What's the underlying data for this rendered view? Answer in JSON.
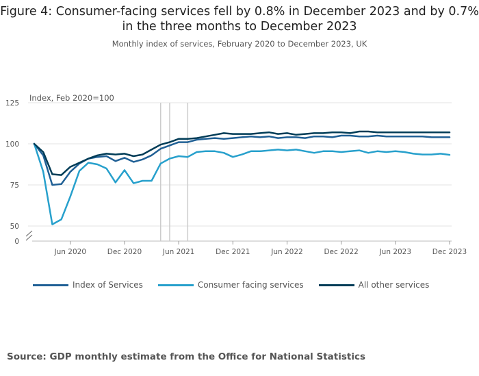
{
  "title": "Figure 4: Consumer-facing services fell by 0.8% in December 2023 and by 0.7% in the three months to December 2023",
  "subtitle": "Monthly index of services, February 2020 to December 2023, UK",
  "source": "Source: GDP monthly estimate from the Office for National Statistics",
  "colors": {
    "index_of_services": "#206095",
    "consumer_facing": "#27a0cc",
    "all_other": "#003c57",
    "grid": "#e3e3e3",
    "ref_line": "#cccccc"
  },
  "chart_data": {
    "type": "line",
    "ylabel": "Index, Feb 2020=100",
    "y_ticks": [
      0,
      50,
      75,
      100,
      125
    ],
    "y_axis_break": true,
    "ylim": [
      45,
      125
    ],
    "x_tick_labels": [
      "Jun 2020",
      "Dec 2020",
      "Jun 2021",
      "Dec 2021",
      "Jun 2022",
      "Dec 2022",
      "Jun 2023",
      "Dec 2023"
    ],
    "x": [
      "Feb 2020",
      "Mar 2020",
      "Apr 2020",
      "May 2020",
      "Jun 2020",
      "Jul 2020",
      "Aug 2020",
      "Sep 2020",
      "Oct 2020",
      "Nov 2020",
      "Dec 2020",
      "Jan 2021",
      "Feb 2021",
      "Mar 2021",
      "Apr 2021",
      "May 2021",
      "Jun 2021",
      "Jul 2021",
      "Aug 2021",
      "Sep 2021",
      "Oct 2021",
      "Nov 2021",
      "Dec 2021",
      "Jan 2022",
      "Feb 2022",
      "Mar 2022",
      "Apr 2022",
      "May 2022",
      "Jun 2022",
      "Jul 2022",
      "Aug 2022",
      "Sep 2022",
      "Oct 2022",
      "Nov 2022",
      "Dec 2022",
      "Jan 2023",
      "Feb 2023",
      "Mar 2023",
      "Apr 2023",
      "May 2023",
      "Jun 2023",
      "Jul 2023",
      "Aug 2023",
      "Sep 2023",
      "Oct 2023",
      "Nov 2023",
      "Dec 2023"
    ],
    "reference_months": [
      "Apr 2021",
      "May 2021",
      "Jul 2021"
    ],
    "grid": true,
    "legend_position": "bottom",
    "series": [
      {
        "name": "Index of Services",
        "color": "#206095",
        "values": [
          100,
          93,
          75,
          75.5,
          83,
          88,
          91,
          92,
          92.5,
          89.5,
          91.5,
          89,
          90.5,
          93,
          97,
          99,
          101,
          101,
          102.5,
          103,
          103.5,
          103,
          103.5,
          104,
          104.5,
          104,
          104.5,
          103.5,
          104,
          104,
          103.5,
          104.5,
          104.5,
          104,
          105,
          105,
          104.5,
          104.5,
          105,
          104.5,
          104.5,
          104.5,
          104.5,
          104.5,
          104,
          104,
          104
        ]
      },
      {
        "name": "Consumer facing services",
        "color": "#27a0cc",
        "values": [
          100,
          83,
          51,
          54,
          68,
          83.5,
          88.5,
          87.5,
          85,
          76.5,
          84,
          76,
          77.5,
          77.5,
          88,
          91,
          92.5,
          92,
          95,
          95.5,
          95.5,
          94.5,
          92,
          93.5,
          95.5,
          95.5,
          96,
          96.5,
          96,
          96.5,
          95.5,
          94.5,
          95.5,
          95.5,
          95,
          95.5,
          96,
          94.5,
          95.5,
          95,
          95.5,
          95,
          94,
          93.5,
          93.5,
          94,
          93.3
        ]
      },
      {
        "name": "All other services",
        "color": "#003c57",
        "values": [
          100,
          95,
          81.5,
          81,
          86,
          88.5,
          91,
          93,
          94,
          93.5,
          94,
          92.5,
          93.5,
          96.5,
          99.5,
          101,
          103,
          103,
          103.5,
          104.5,
          105.5,
          106.5,
          106,
          106,
          106,
          106.5,
          107,
          106,
          106.5,
          105.5,
          106,
          106.5,
          106.5,
          107,
          107,
          106.5,
          107.5,
          107.5,
          107,
          107,
          107,
          107,
          107,
          107,
          107,
          107,
          107
        ]
      }
    ]
  }
}
